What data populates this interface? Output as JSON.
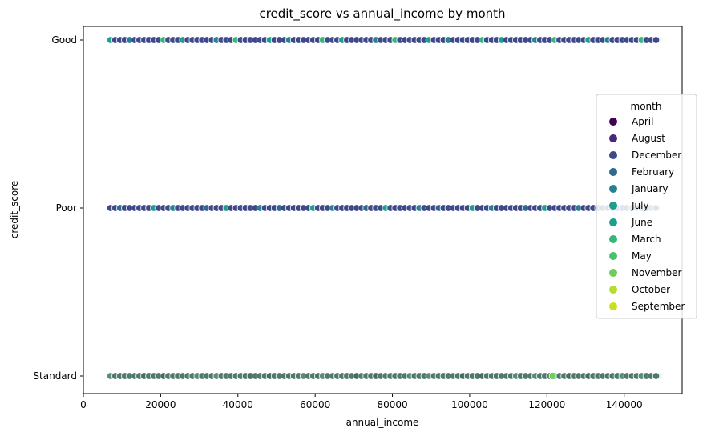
{
  "chart_data": {
    "type": "scatter",
    "title": "credit_score vs annual_income by month",
    "xlabel": "annual_income",
    "ylabel": "credit_score",
    "xlim": [
      0,
      155000
    ],
    "x_ticks": [
      0,
      20000,
      40000,
      60000,
      80000,
      100000,
      120000,
      140000
    ],
    "y_categories": [
      "Good",
      "Poor",
      "Standard"
    ],
    "grid": false,
    "legend": {
      "title": "month",
      "placement": "center-right",
      "entries": [
        {
          "name": "April",
          "color": "#440154"
        },
        {
          "name": "August",
          "color": "#482878"
        },
        {
          "name": "December",
          "color": "#3e4989"
        },
        {
          "name": "February",
          "color": "#31688e"
        },
        {
          "name": "January",
          "color": "#26828e"
        },
        {
          "name": "July",
          "color": "#1f9e89"
        },
        {
          "name": "June",
          "color": "#1f9e89"
        },
        {
          "name": "March",
          "color": "#35b779"
        },
        {
          "name": "May",
          "color": "#4ac16d"
        },
        {
          "name": "November",
          "color": "#6ece58"
        },
        {
          "name": "October",
          "color": "#b5de2b"
        },
        {
          "name": "September",
          "color": "#c8e020"
        }
      ]
    },
    "series": [
      {
        "category": "Good",
        "x_range": [
          7000,
          149000
        ],
        "point_spacing": 1250,
        "base_color": "#3e4989",
        "accent_colors": [
          "#1f9e89",
          "#26828e",
          "#35b779"
        ]
      },
      {
        "category": "Poor",
        "x_range": [
          7000,
          149000
        ],
        "point_spacing": 1250,
        "base_color": "#3e4989",
        "accent_colors": [
          "#1f9e89",
          "#26828e",
          "#31688e"
        ]
      },
      {
        "category": "Standard",
        "x_range": [
          7000,
          149000
        ],
        "point_spacing": 1250,
        "base_color": "#4f7a6a",
        "accent_colors": [
          "#5a8a78",
          "#466e60"
        ],
        "highlight": {
          "x": 121500,
          "color": "#6ece58"
        }
      }
    ]
  }
}
